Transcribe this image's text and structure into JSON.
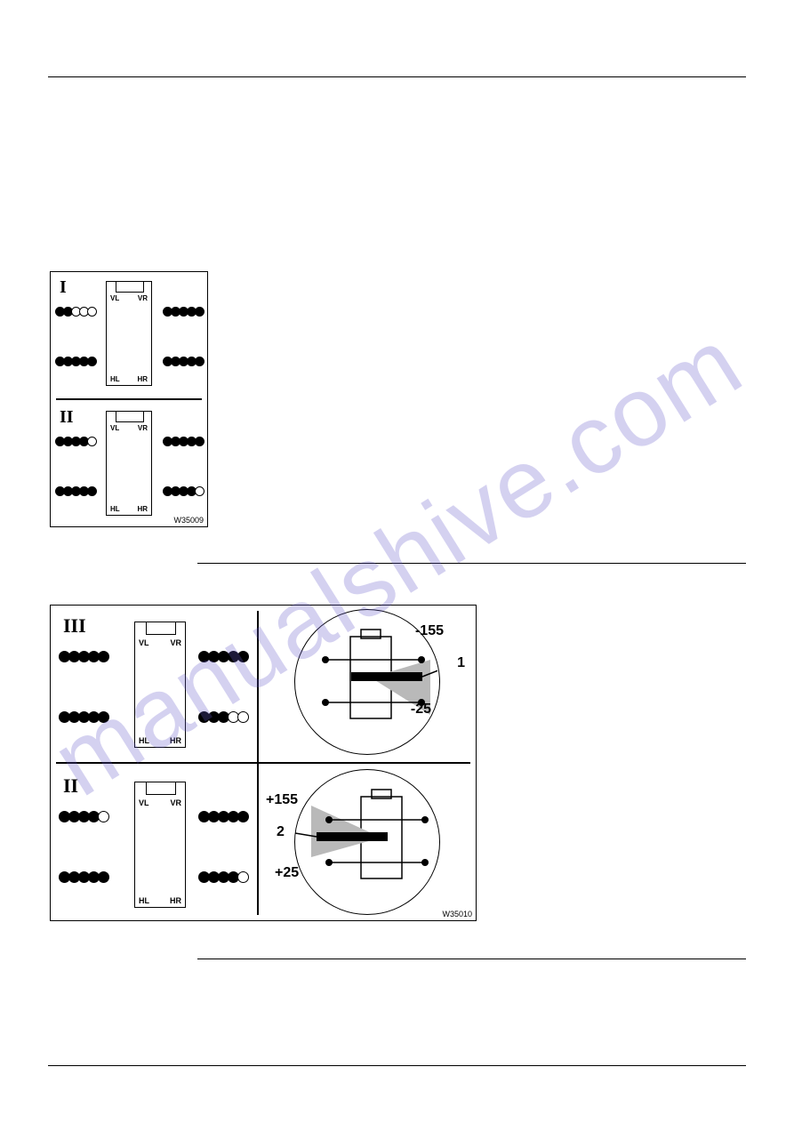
{
  "watermark": "manualshive.com",
  "fig1": {
    "id": "W35009",
    "panelA": {
      "roman": "I",
      "labels": {
        "vl": "VL",
        "vr": "VR",
        "hl": "HL",
        "hr": "HR"
      },
      "wheels": {
        "frontL": [
          "o",
          "o",
          "o",
          "f",
          "f"
        ],
        "frontR": [
          "f",
          "f",
          "f",
          "f",
          "f"
        ],
        "rearL": [
          "f",
          "f",
          "f",
          "f",
          "f"
        ],
        "rearR": [
          "f",
          "f",
          "f",
          "f",
          "f"
        ]
      }
    },
    "panelB": {
      "roman": "II",
      "labels": {
        "vl": "VL",
        "vr": "VR",
        "hl": "HL",
        "hr": "HR"
      },
      "wheels": {
        "frontL": [
          "o",
          "f",
          "f",
          "f",
          "f"
        ],
        "frontR": [
          "f",
          "f",
          "f",
          "f",
          "f"
        ],
        "rearL": [
          "f",
          "f",
          "f",
          "f",
          "f"
        ],
        "rearR": [
          "f",
          "f",
          "f",
          "f",
          "o"
        ]
      }
    }
  },
  "fig2": {
    "id": "W35010",
    "panelA": {
      "roman": "III",
      "labels": {
        "vl": "VL",
        "vr": "VR",
        "hl": "HL",
        "hr": "HR"
      },
      "wheels": {
        "frontL": [
          "f",
          "f",
          "f",
          "f",
          "f"
        ],
        "frontR": [
          "f",
          "f",
          "f",
          "f",
          "f"
        ],
        "rearL": [
          "f",
          "f",
          "f",
          "f",
          "f"
        ],
        "rearR": [
          "f",
          "f",
          "f",
          "o",
          "o"
        ]
      },
      "detail": {
        "valTop": "-155",
        "valBottom": "-25",
        "callout": "1"
      }
    },
    "panelB": {
      "roman": "II",
      "labels": {
        "vl": "VL",
        "vr": "VR",
        "hl": "HL",
        "hr": "HR"
      },
      "wheels": {
        "frontL": [
          "o",
          "f",
          "f",
          "f",
          "f"
        ],
        "frontR": [
          "f",
          "f",
          "f",
          "f",
          "f"
        ],
        "rearL": [
          "f",
          "f",
          "f",
          "f",
          "f"
        ],
        "rearR": [
          "f",
          "f",
          "f",
          "f",
          "o"
        ]
      },
      "detail": {
        "valTop": "+155",
        "valBottom": "+25",
        "callout": "2"
      }
    }
  }
}
